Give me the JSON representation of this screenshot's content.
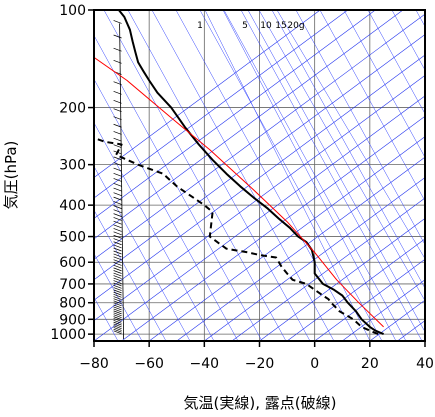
{
  "chart_data": {
    "type": "line",
    "title": "",
    "xlabel": "気温(実線), 露点(破線)",
    "ylabel": "気圧(hPa)",
    "xlim": [
      -80,
      40
    ],
    "ylim": [
      1050,
      100
    ],
    "yscale": "log",
    "x_ticks": [
      -80,
      -60,
      -40,
      -20,
      0,
      20,
      40
    ],
    "x_tick_labels": [
      "−80",
      "−60",
      "−40",
      "−20",
      "0",
      "20",
      "40"
    ],
    "y_ticks": [
      100,
      200,
      300,
      400,
      500,
      600,
      700,
      800,
      900,
      1000
    ],
    "y_tick_labels": [
      "100",
      "200",
      "300",
      "400",
      "500",
      "600",
      "700",
      "800",
      "900",
      "1000"
    ],
    "mixing_ratio_labels": [
      "1",
      "5",
      "10",
      "15",
      "20g"
    ],
    "series": [
      {
        "style": "solid",
        "color": "#000000",
        "x": [
          25,
          22,
          20,
          17,
          15,
          12,
          10,
          7,
          3,
          0,
          0,
          -1,
          -3,
          -6,
          -9,
          -13,
          -17,
          -22,
          -27,
          -32,
          -37,
          -42,
          -47,
          -52,
          -57,
          -60,
          -62,
          -64,
          -65,
          -66,
          -67,
          -69,
          -71
        ],
        "y": [
          1000,
          975,
          950,
          900,
          850,
          800,
          760,
          730,
          700,
          650,
          600,
          550,
          520,
          500,
          470,
          440,
          410,
          380,
          350,
          320,
          290,
          260,
          230,
          200,
          180,
          165,
          155,
          145,
          135,
          125,
          115,
          105,
          100
        ]
      },
      {
        "style": "dashed",
        "color": "#000000",
        "x": [
          23,
          20,
          17,
          14,
          9,
          6,
          5,
          3,
          0,
          -3,
          -8,
          -10,
          -12,
          -14,
          -20,
          -24,
          -32,
          -38,
          -37,
          -40,
          -50,
          -55,
          -64,
          -72,
          -70,
          -76,
          -79
        ],
        "y": [
          1000,
          975,
          950,
          900,
          850,
          800,
          780,
          760,
          730,
          700,
          680,
          650,
          620,
          580,
          570,
          560,
          545,
          500,
          420,
          400,
          350,
          320,
          300,
          280,
          260,
          255,
          250
        ]
      },
      {
        "style": "solid",
        "color": "#ff0000",
        "x": [
          25,
          16,
          8,
          0,
          -10,
          -22,
          -38,
          -52,
          -68,
          -80
        ],
        "y": [
          950,
          800,
          680,
          560,
          450,
          360,
          270,
          215,
          165,
          140
        ]
      }
    ],
    "grid": true,
    "wind_barbs": true,
    "isotherm_skew": true,
    "mixing_ratio_lines": true
  }
}
